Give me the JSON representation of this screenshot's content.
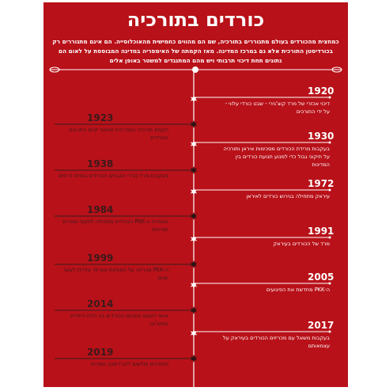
{
  "title": "כורדים בתורכיה",
  "intro": "כמחצית מהכורדים בעולם מתגוררים בתורכיה, שם הם מהווים כחמישית מהאוכלוסייה. הם אינם מתגוררים רק בכורדיסטן התורכית אלא גם במרכז המדינה. מאז הקמתה של האימפריה במדינה המבוססת על לאום הם נתונים תחת דיכוי תרבותי ויש מהם המתנגדים למשטר באופן אלים",
  "events": [
    {
      "year": "1920",
      "text": "דיכוי אכזרי של מרד קוצ'גירי - שבט כורדי עלווי - על ידי התורכים"
    },
    {
      "year": "1923",
      "text": "הקמת תורכיה המודרנית ואיסור קיום התרבות הכורדית"
    },
    {
      "year": "1930",
      "text": "בעקבות מרידת הכורדים מסכימות איראן ותורכיה על תיקוני גבול כדי למנוע תנועת כורדים בין המדינות"
    },
    {
      "year": "1938",
      "text": "בעקבות מרד כורדי נטבחים הכורדים במחוז דרסים"
    },
    {
      "year": "1972",
      "text": "עיראק מתחילה בגירוש כורדים לאיראן"
    },
    {
      "year": "1984",
      "text": "מחתרת ה-PKK הכורדית מתחילה לתקוף מטרות תורכיות"
    },
    {
      "year": "1991",
      "text": "מרד של הכורדים בעיראק"
    },
    {
      "year": "1999",
      "text": "ה-PKK מכריזה על הפסקת אש חד צדדית לעשר שנים"
    },
    {
      "year": "2005",
      "text": "ה-PKK מחדשת את הפיגועים"
    },
    {
      "year": "2014",
      "text": "אנשי דאעש טובחים בכורדים בני הדת היזידית בסינג'אר"
    },
    {
      "year": "2017",
      "text": "בעקבות משאל עם מכריזים הכורדים בעיראק על עצמאותם"
    },
    {
      "year": "2019",
      "text": "התורכים פולשים לכורדיסטן הסורית"
    }
  ]
}
